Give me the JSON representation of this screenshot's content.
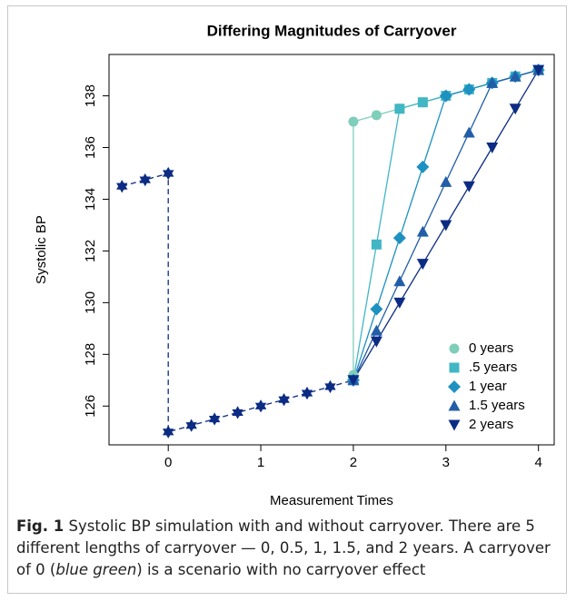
{
  "chart_data": {
    "type": "line",
    "title": "Differing Magnitudes of Carryover",
    "x_label": "Measurement Times",
    "y_label": "Systolic BP",
    "xlim": [
      -0.64,
      4.17
    ],
    "xticks": [
      0,
      1,
      2,
      3,
      4
    ],
    "ylim": [
      124.5,
      139.6
    ],
    "yticks": [
      126,
      128,
      130,
      132,
      134,
      136,
      138
    ],
    "legend": "bottom-right",
    "series": [
      {
        "color": "#0c2c84",
        "marker": "star",
        "dash": true,
        "x": [
          -0.5,
          -0.25,
          0,
          0,
          0.25,
          0.5,
          0.75,
          1,
          1.25,
          1.5,
          1.75,
          2
        ],
        "values": [
          134.5,
          134.75,
          135,
          125,
          125.25,
          125.5,
          125.75,
          126,
          126.25,
          126.5,
          126.75,
          127
        ]
      },
      {
        "name": "0 years",
        "color": "#7fcdbb",
        "marker": "circle",
        "x": [
          2,
          2,
          2.25,
          2.5,
          2.75,
          3,
          3.25,
          3.5,
          3.75,
          4
        ],
        "values": [
          127.2,
          137,
          137.25,
          137.5,
          137.75,
          138,
          138.25,
          138.5,
          138.75,
          139
        ]
      },
      {
        "name": ".5 years",
        "color": "#41b6c4",
        "marker": "square",
        "x": [
          2,
          2.25,
          2.5,
          2.75,
          3,
          3.25,
          3.5,
          3.75,
          4
        ],
        "values": [
          127,
          132.25,
          137.5,
          137.75,
          138,
          138.25,
          138.5,
          138.75,
          139
        ]
      },
      {
        "name": "1 year",
        "color": "#1d91c0",
        "marker": "diamond",
        "x": [
          2,
          2.25,
          2.5,
          2.75,
          3,
          3.25,
          3.5,
          3.75,
          4
        ],
        "values": [
          127,
          129.75,
          132.5,
          135.25,
          138,
          138.25,
          138.5,
          138.75,
          139
        ]
      },
      {
        "name": "1.5 years",
        "color": "#225ea8",
        "marker": "triangle-up",
        "x": [
          2,
          2.25,
          2.5,
          2.75,
          3,
          3.25,
          3.5,
          3.75,
          4
        ],
        "values": [
          127,
          128.92,
          130.83,
          132.75,
          134.67,
          136.58,
          138.5,
          138.75,
          139
        ]
      },
      {
        "name": "2 years",
        "color": "#0c2c84",
        "marker": "triangle-down",
        "x": [
          2,
          2.25,
          2.5,
          2.75,
          3,
          3.25,
          3.5,
          3.75,
          4
        ],
        "values": [
          127,
          128.5,
          130,
          131.5,
          133,
          134.5,
          136,
          137.5,
          139
        ]
      }
    ]
  },
  "caption": {
    "label": "Fig. 1",
    "text_1": "Systolic BP simulation with and without carryover. There are 5 different lengths of carryover — 0, 0.5, 1, 1.5, and 2 years. A carryover of 0 (",
    "emphasis": "blue green",
    "text_2": ") is a scenario with no carryover effect"
  }
}
